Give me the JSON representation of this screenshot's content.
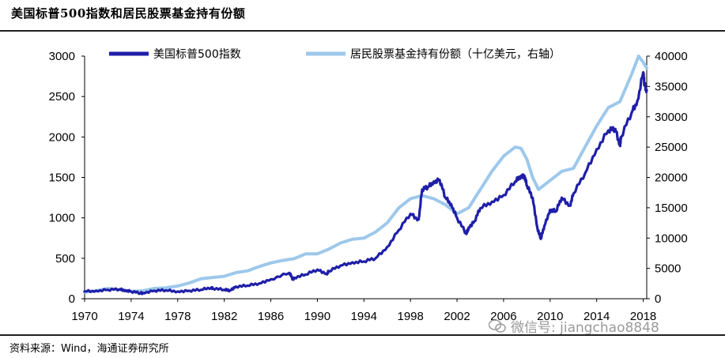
{
  "header": {
    "title": "美国标普500指数和居民股票基金持有份额"
  },
  "footer": {
    "source": "资料来源：Wind，海通证券研究所",
    "watermark": "微信号: jiangchao8848"
  },
  "colors": {
    "sp500": "#1f1fa8",
    "funds": "#9dc8eb",
    "axis": "#000000"
  },
  "chart_data": {
    "type": "line",
    "title": "美国标普500指数和居民股票基金持有份额",
    "xlim": [
      1970,
      2018.3
    ],
    "x_ticks": [
      1970,
      1974,
      1978,
      1982,
      1986,
      1990,
      1994,
      1998,
      2002,
      2006,
      2010,
      2014,
      2018
    ],
    "y_left": {
      "lim": [
        0,
        3000
      ],
      "ticks": [
        0,
        500,
        1000,
        1500,
        2000,
        2500,
        3000
      ]
    },
    "y_right": {
      "lim": [
        0,
        40000
      ],
      "ticks": [
        0,
        5000,
        10000,
        15000,
        20000,
        25000,
        30000,
        35000,
        40000
      ]
    },
    "legend_position": "top",
    "series": [
      {
        "name": "美国标普500指数",
        "axis": "left",
        "x": [
          1970,
          1971,
          1972,
          1973,
          1973.5,
          1974,
          1974.8,
          1975,
          1976,
          1977,
          1978,
          1979,
          1980,
          1980.9,
          1981,
          1982,
          1982.5,
          1983,
          1984,
          1985,
          1986,
          1987.6,
          1987.9,
          1988,
          1989,
          1990,
          1990.8,
          1991,
          1992,
          1993,
          1994,
          1995,
          1996,
          1997,
          1998,
          1998.7,
          1999,
          1999.5,
          2000,
          2000.5,
          2001,
          2001.5,
          2002,
          2002.8,
          2003,
          2003.5,
          2004,
          2005,
          2006,
          2007,
          2007.5,
          2007.8,
          2008,
          2008.5,
          2008.9,
          2009.2,
          2009.5,
          2010,
          2010.5,
          2011,
          2011.7,
          2012,
          2013,
          2014,
          2015,
          2015.6,
          2016,
          2016.1,
          2017,
          2017.5,
          2018,
          2018.1,
          2018.3
        ],
        "values": [
          90,
          100,
          110,
          116,
          105,
          90,
          68,
          72,
          100,
          104,
          90,
          100,
          110,
          140,
          130,
          110,
          105,
          150,
          162,
          190,
          240,
          320,
          240,
          260,
          300,
          360,
          310,
          340,
          410,
          450,
          460,
          500,
          640,
          850,
          1050,
          980,
          1350,
          1380,
          1450,
          1470,
          1250,
          1170,
          1000,
          800,
          880,
          960,
          1120,
          1200,
          1280,
          1450,
          1520,
          1520,
          1400,
          1250,
          880,
          740,
          900,
          1100,
          1080,
          1250,
          1150,
          1300,
          1550,
          1850,
          2080,
          2100,
          1900,
          2000,
          2300,
          2450,
          2800,
          2650,
          2580
        ]
      },
      {
        "name": "居民股票基金持有份额（十亿美元，右轴）",
        "axis": "right",
        "x": [
          1970,
          1971,
          1972,
          1973,
          1974,
          1975,
          1976,
          1977,
          1978,
          1979,
          1980,
          1981,
          1982,
          1983,
          1984,
          1985,
          1986,
          1987,
          1988,
          1989,
          1990,
          1991,
          1992,
          1993,
          1994,
          1995,
          1996,
          1997,
          1998,
          1999,
          2000,
          2001,
          2002,
          2003,
          2004,
          2005,
          2006,
          2007,
          2007.5,
          2008,
          2008.5,
          2009,
          2010,
          2011,
          2012,
          2013,
          2014,
          2015,
          2016,
          2017,
          2017.6,
          2018,
          2018.3
        ],
        "values": [
          1100,
          1300,
          1700,
          1500,
          1200,
          1300,
          1700,
          1800,
          2100,
          2600,
          3300,
          3500,
          3700,
          4300,
          4600,
          5300,
          5900,
          6300,
          6600,
          7400,
          7400,
          8200,
          9200,
          9800,
          10000,
          11000,
          12500,
          15000,
          16500,
          17000,
          16500,
          15500,
          14000,
          15000,
          18000,
          21000,
          23500,
          25000,
          24800,
          23000,
          20000,
          18000,
          19500,
          21000,
          21500,
          25000,
          28500,
          31500,
          32500,
          37000,
          40000,
          39000,
          38000
        ]
      }
    ]
  }
}
